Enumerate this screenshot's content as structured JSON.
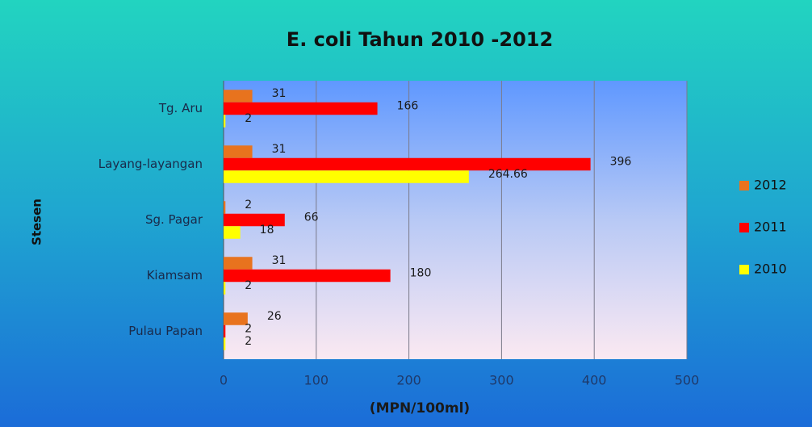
{
  "chart_data": {
    "type": "hbar",
    "title": "E. coli Tahun 2010 -2012",
    "x_label": "(MPN/100ml)",
    "y_label": "Stesen",
    "categories": [
      "Tg. Aru",
      "Layang-layangan",
      "Sg. Pagar",
      "Kiamsam",
      "Pulau Papan"
    ],
    "series": [
      {
        "name": "2012",
        "color": "#e8731e",
        "values": [
          31,
          31,
          2,
          31,
          26
        ]
      },
      {
        "name": "2011",
        "color": "#ff0000",
        "values": [
          166,
          396,
          66,
          180,
          2
        ]
      },
      {
        "name": "2010",
        "color": "#ffff00",
        "values": [
          2,
          264.66,
          18,
          2,
          2
        ]
      }
    ],
    "xlim": [
      0,
      500
    ],
    "xticks": [
      0,
      100,
      200,
      300,
      400,
      500
    ],
    "grid": true,
    "legend": "right"
  }
}
